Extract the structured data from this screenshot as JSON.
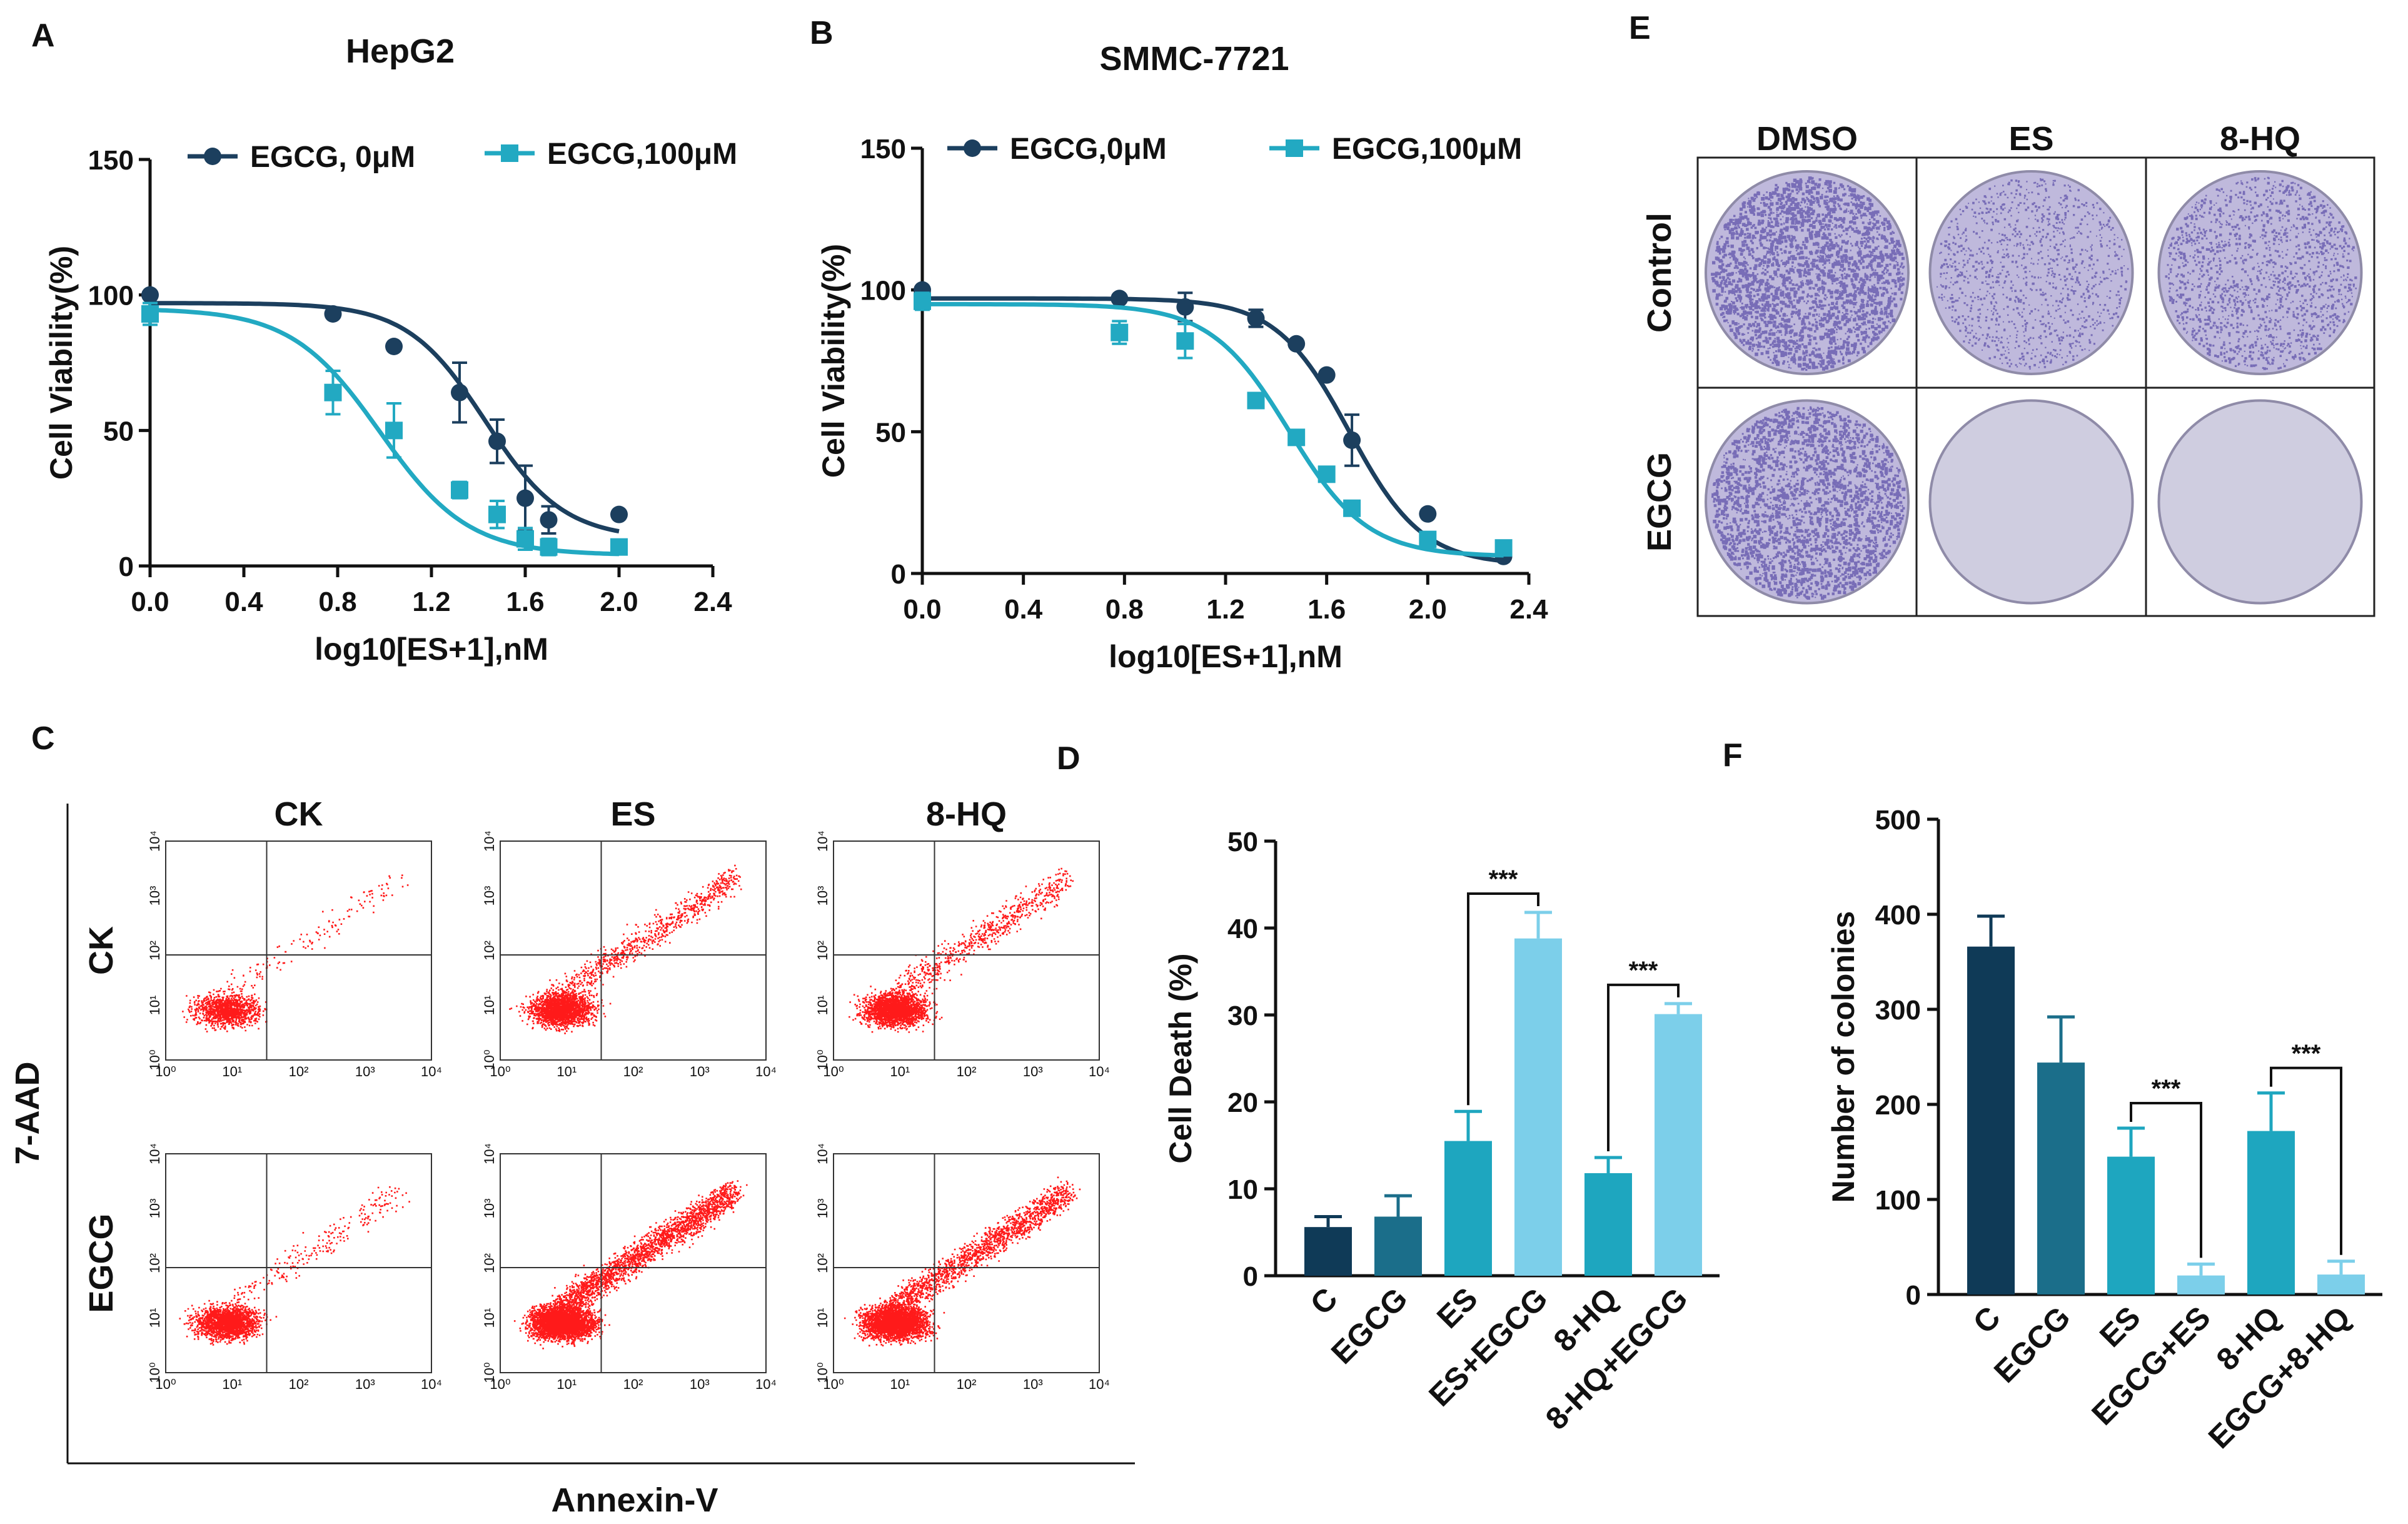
{
  "colors": {
    "dark": "#1c3f5e",
    "teal": "#22a9c2",
    "bar_C": "#0f3a57",
    "bar_EGCG": "#1b6e8a",
    "bar_ES": "#1ea6bf",
    "bar_combo": "#7ccfea",
    "plate_dark": "#6b5fb0",
    "plate_light": "#cfcde0",
    "flow_dot": "#ff1a1a"
  },
  "panels": {
    "A": {
      "letter": "A"
    },
    "B": {
      "letter": "B"
    },
    "C": {
      "letter": "C"
    },
    "D": {
      "letter": "D"
    },
    "E": {
      "letter": "E"
    },
    "F": {
      "letter": "F"
    }
  },
  "chart_data": [
    {
      "id": "A",
      "type": "line",
      "title": "HepG2",
      "xlabel": "log10[ES+1],nM",
      "ylabel": "Cell Viability(%)",
      "xlim": [
        0,
        2.4
      ],
      "ylim": [
        0,
        150
      ],
      "xticks": [
        "0.0",
        "0.4",
        "0.8",
        "1.2",
        "1.6",
        "2.0",
        "2.4"
      ],
      "yticks": [
        "0",
        "50",
        "100",
        "150"
      ],
      "series": [
        {
          "name": "EGCG, 0μM",
          "marker": "circle",
          "x": [
            0.0,
            0.78,
            1.04,
            1.32,
            1.48,
            1.6,
            1.7,
            2.0
          ],
          "y": [
            100,
            93,
            81,
            64,
            46,
            25,
            17,
            19
          ],
          "err": [
            0,
            0,
            0,
            11,
            8,
            12,
            5,
            0
          ],
          "ic50": 1.43,
          "top": 97,
          "bottom": 10,
          "hill": 2.6
        },
        {
          "name": "EGCG,100μM",
          "marker": "square",
          "x": [
            0.0,
            0.78,
            1.04,
            1.32,
            1.48,
            1.6,
            1.7,
            2.0
          ],
          "y": [
            93,
            64,
            50,
            28,
            19,
            10,
            7,
            7
          ],
          "err": [
            4,
            8,
            10,
            3,
            5,
            4,
            3,
            2
          ],
          "ic50": 0.98,
          "top": 95,
          "bottom": 4,
          "hill": 2.3
        }
      ]
    },
    {
      "id": "B",
      "type": "line",
      "title": "SMMC-7721",
      "xlabel": "log10[ES+1],nM",
      "ylabel": "Cell Viability(%)",
      "xlim": [
        0,
        2.4
      ],
      "ylim": [
        0,
        150
      ],
      "xticks": [
        "0.0",
        "0.4",
        "0.8",
        "1.2",
        "1.6",
        "2.0",
        "2.4"
      ],
      "yticks": [
        "0",
        "50",
        "100",
        "150"
      ],
      "series": [
        {
          "name": "EGCG,0μM",
          "marker": "circle",
          "x": [
            0.0,
            0.78,
            1.04,
            1.32,
            1.48,
            1.6,
            1.7,
            2.0,
            2.3
          ],
          "y": [
            100,
            97,
            94,
            90,
            81,
            70,
            47,
            21,
            6
          ],
          "err": [
            0,
            0,
            5,
            3,
            0,
            0,
            9,
            0,
            0
          ],
          "ic50": 1.69,
          "top": 97,
          "bottom": 3,
          "hill": 3.0
        },
        {
          "name": "EGCG,100μM",
          "marker": "square",
          "x": [
            0.0,
            0.78,
            1.04,
            1.32,
            1.48,
            1.6,
            1.7,
            2.0,
            2.3
          ],
          "y": [
            96,
            85,
            82,
            61,
            48,
            35,
            23,
            12,
            9
          ],
          "err": [
            3,
            4,
            6,
            2,
            2,
            2,
            2,
            0,
            0
          ],
          "ic50": 1.45,
          "top": 95,
          "bottom": 6,
          "hill": 2.8
        }
      ]
    },
    {
      "id": "D",
      "type": "bar",
      "ylabel": "Cell Death (%)",
      "ylim": [
        0,
        50
      ],
      "yticks": [
        "0",
        "10",
        "20",
        "30",
        "40",
        "50"
      ],
      "categories": [
        "C",
        "EGCG",
        "ES",
        "ES+EGCG",
        "8-HQ",
        "8-HQ+EGCG"
      ],
      "values": [
        5.6,
        6.8,
        15.5,
        38.8,
        11.8,
        30.1
      ],
      "errors": [
        1.2,
        2.4,
        3.4,
        3.0,
        1.8,
        1.2
      ],
      "significance": [
        {
          "from": "ES",
          "to": "ES+EGCG",
          "label": "***"
        },
        {
          "from": "8-HQ",
          "to": "8-HQ+EGCG",
          "label": "***"
        }
      ]
    },
    {
      "id": "F",
      "type": "bar",
      "ylabel": "Number of colonies",
      "ylim": [
        0,
        500
      ],
      "yticks": [
        "0",
        "100",
        "200",
        "300",
        "400",
        "500"
      ],
      "categories": [
        "C",
        "EGCG",
        "ES",
        "EGCG+ES",
        "8-HQ",
        "EGCG+8-HQ"
      ],
      "values": [
        366,
        244,
        145,
        20,
        172,
        21
      ],
      "errors": [
        32,
        48,
        30,
        12,
        40,
        14
      ],
      "significance": [
        {
          "from": "ES",
          "to": "EGCG+ES",
          "label": "***"
        },
        {
          "from": "8-HQ",
          "to": "EGCG+8-HQ",
          "label": "***"
        }
      ]
    }
  ],
  "flow": {
    "columns": [
      "CK",
      "ES",
      "8-HQ"
    ],
    "rows": [
      "CK",
      "EGCG"
    ],
    "xlabel": "Annexin-V",
    "ylabel": "7-AAD",
    "tick_labels": [
      "10⁰",
      "10¹",
      "10²",
      "10³",
      "10⁴"
    ],
    "intensity": [
      [
        1.0,
        2.0,
        2.0
      ],
      [
        1.6,
        4.0,
        3.4
      ]
    ],
    "late_fraction": [
      [
        0.1,
        0.3,
        0.26
      ],
      [
        0.12,
        0.4,
        0.36
      ]
    ]
  },
  "colony": {
    "columns": [
      "DMSO",
      "ES",
      "8-HQ"
    ],
    "rows": [
      "Control",
      "EGCG"
    ],
    "density": [
      [
        1.0,
        0.45,
        0.6
      ],
      [
        0.95,
        0.0,
        0.0
      ]
    ]
  }
}
